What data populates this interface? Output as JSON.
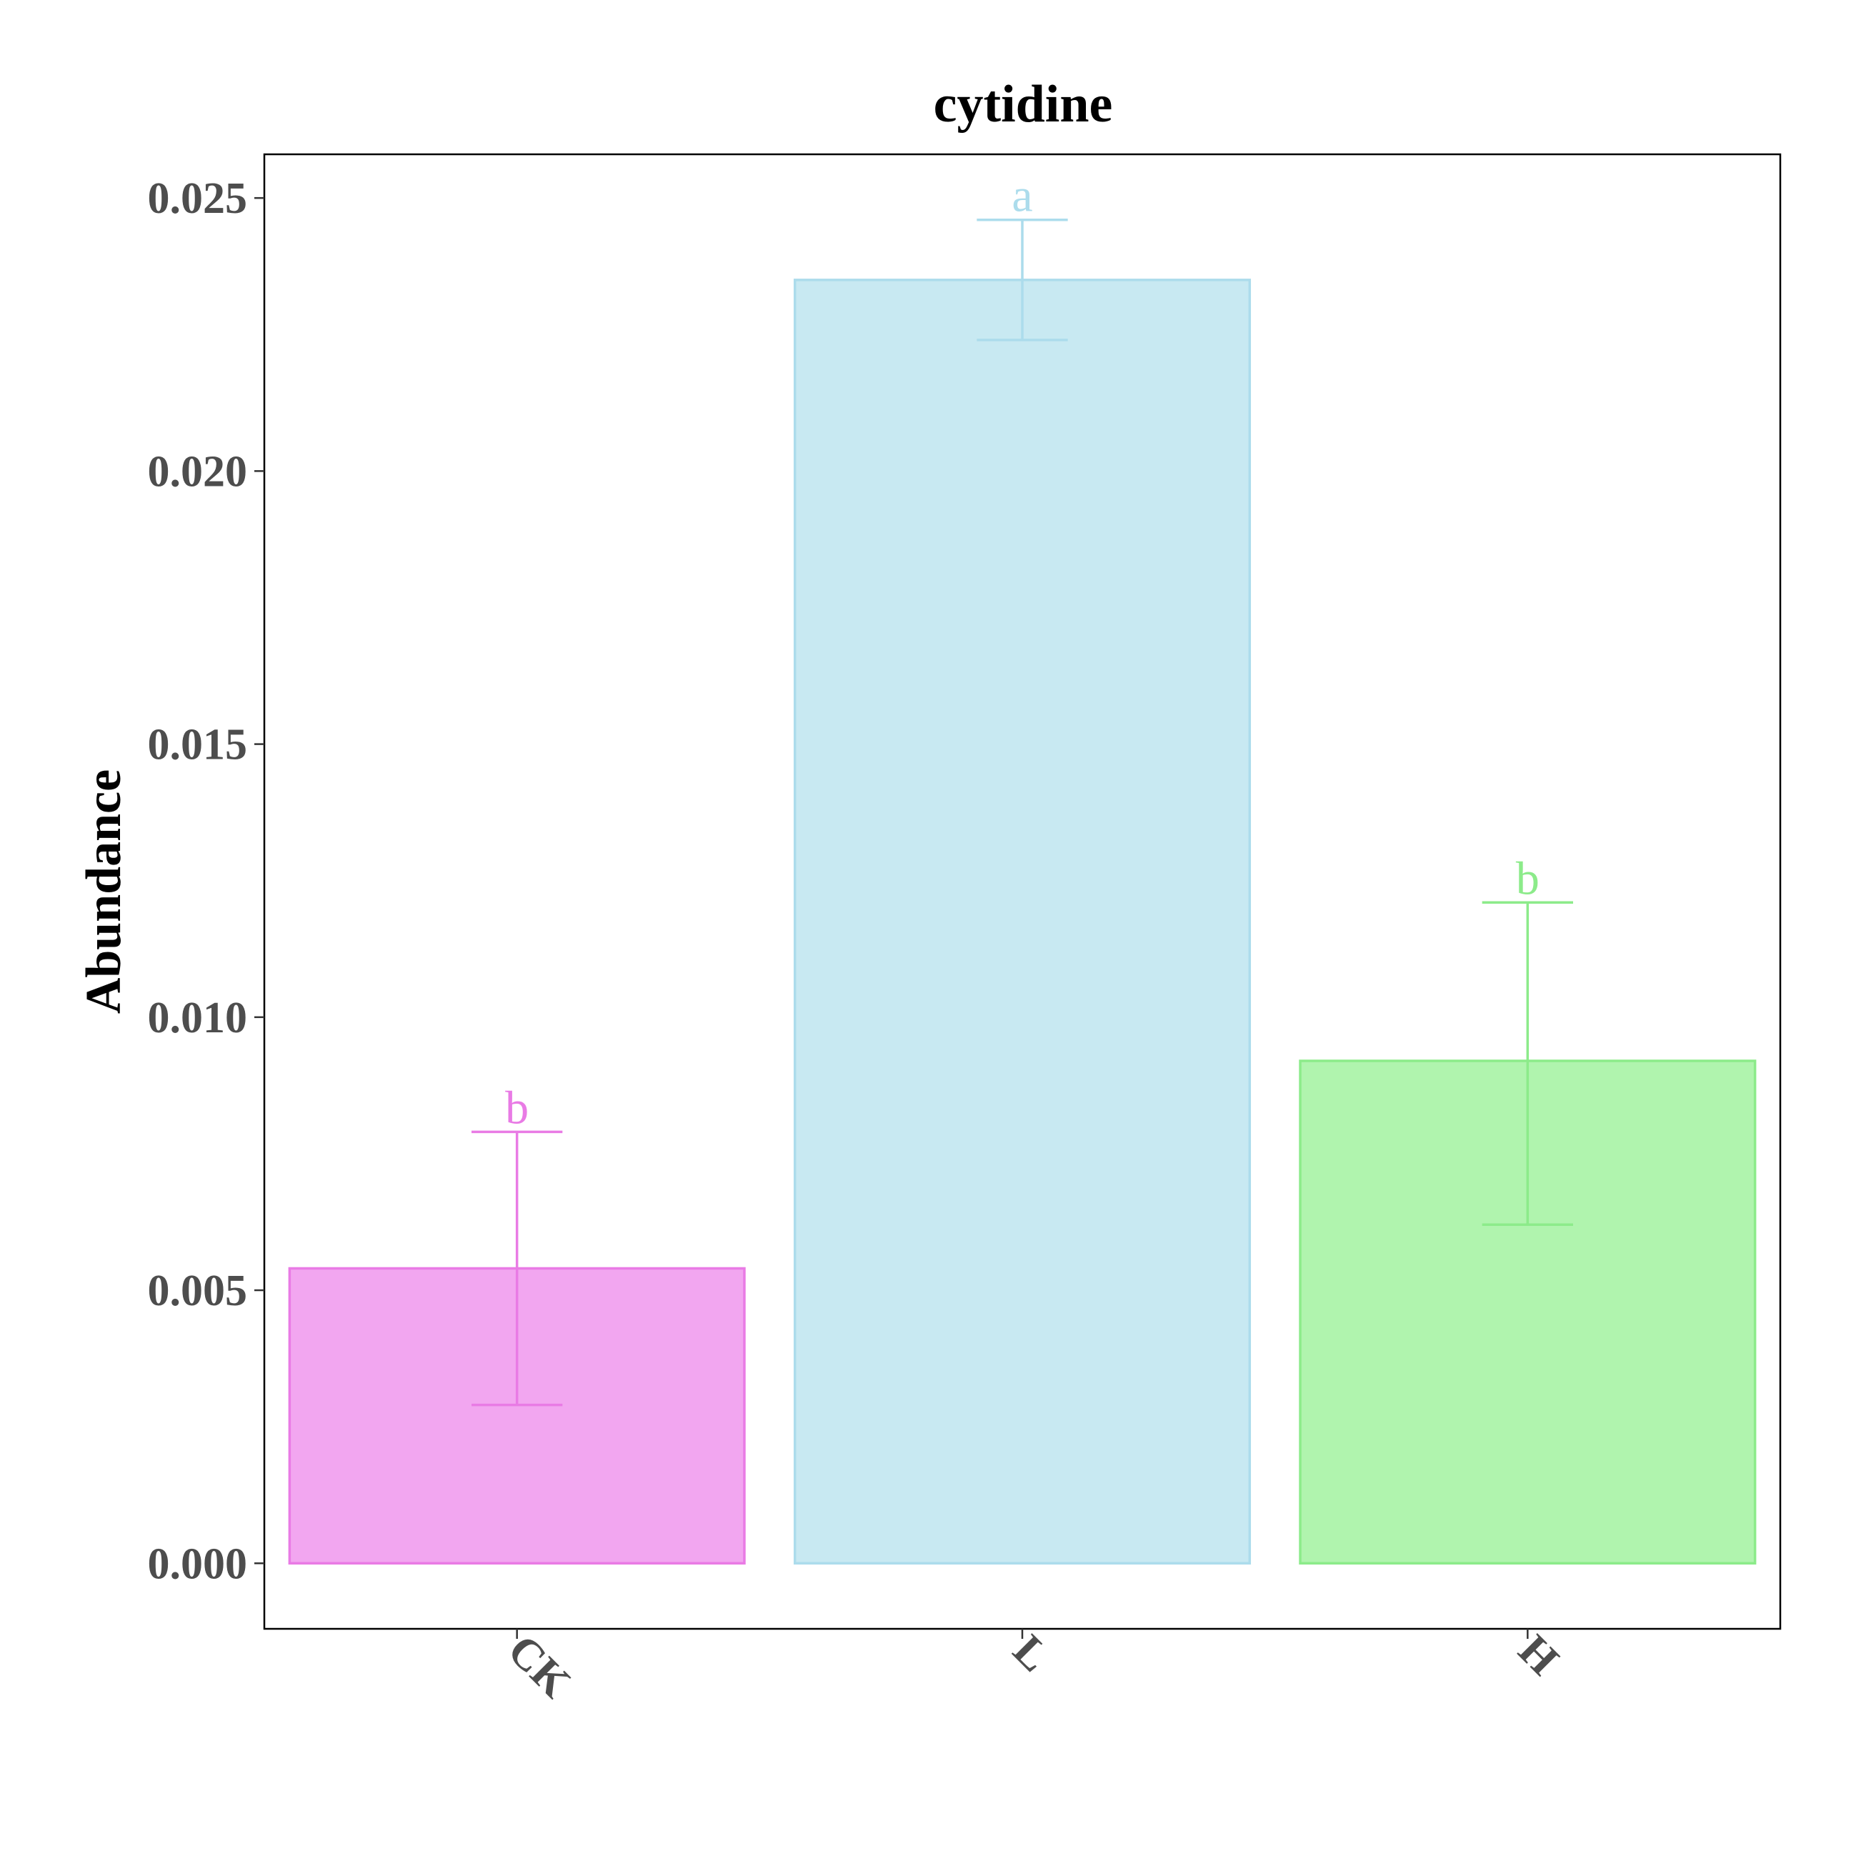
{
  "chart_data": {
    "type": "bar",
    "title": "cytidine",
    "xlabel": "",
    "ylabel": "Abundance",
    "categories": [
      "CK",
      "L",
      "H"
    ],
    "values": [
      0.0054,
      0.0235,
      0.0092
    ],
    "error_low": [
      0.0029,
      0.0224,
      0.0062
    ],
    "error_high": [
      0.0079,
      0.0246,
      0.0121
    ],
    "significance": [
      "b",
      "a",
      "b"
    ],
    "colors": {
      "fill": [
        "#f2a6f0",
        "#c8e9f2",
        "#b0f4ae"
      ],
      "stroke": [
        "#e97be5",
        "#acdcec",
        "#8ceb8a"
      ]
    },
    "ylim": [
      -0.0012,
      0.0258
    ],
    "yticks": [
      0.0,
      0.005,
      0.01,
      0.015,
      0.02,
      0.025
    ],
    "ytick_labels": [
      "0.000",
      "0.005",
      "0.010",
      "0.015",
      "0.020",
      "0.025"
    ],
    "grid": false,
    "legend": "none"
  }
}
